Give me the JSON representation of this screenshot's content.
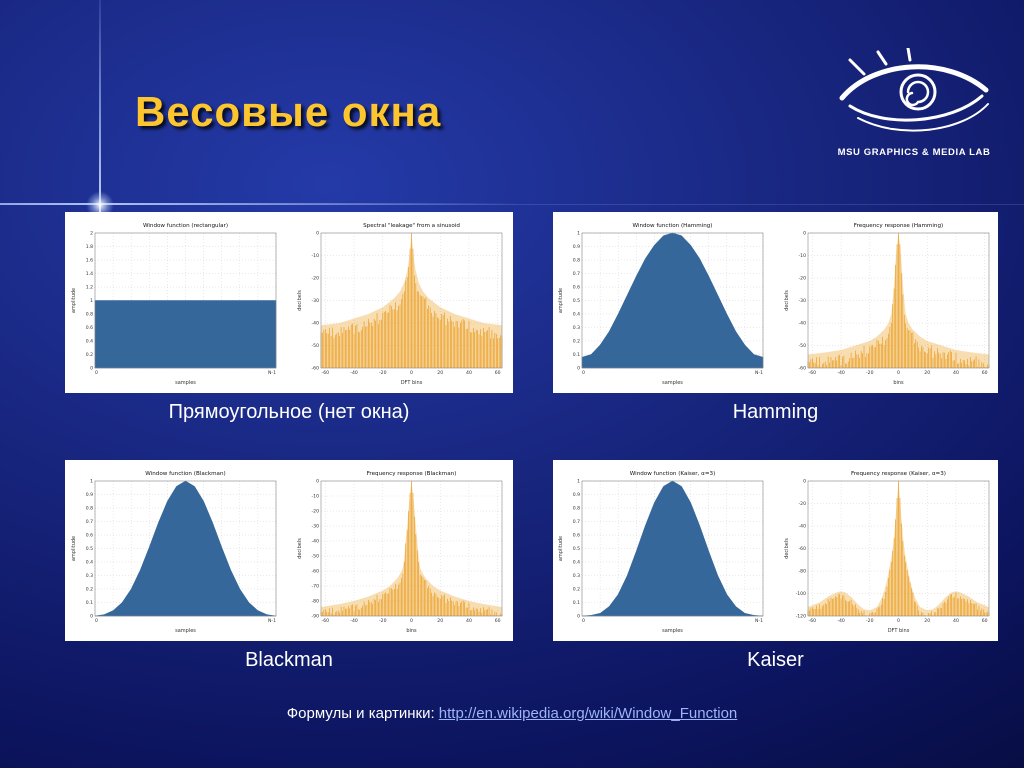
{
  "slide": {
    "title": "Весовые окна",
    "logo_text": "MSU GRAPHICS & MEDIA LAB",
    "footer_prefix": "Формулы и картинки: ",
    "footer_link": "http://en.wikipedia.org/wiki/Window_Function",
    "colors": {
      "background_blue": "#18267f",
      "title_gold": "#fdc62e",
      "window_fill": "#35679a",
      "response_fill": "#e8940c",
      "link_blue": "#9db4f6"
    }
  },
  "chart_data": [
    {
      "caption": "Прямоугольное (нет окна)",
      "plots": [
        {
          "type": "area",
          "title": "Window function (rectangular)",
          "xlabel": "samples",
          "ylabel": "amplitude",
          "xticklabels": [
            "0",
            "N-1"
          ],
          "ylim": [
            0,
            2
          ],
          "ytick_step": 0.2,
          "x": [
            0,
            1
          ],
          "y": [
            1,
            1
          ],
          "color": "#35679a"
        },
        {
          "type": "bars",
          "title": "Spectral \"leakage\" from a sinusoid",
          "xlabel": "DFT bins",
          "ylabel": "decibels",
          "xlim": [
            -63,
            63
          ],
          "xticks": [
            -60,
            -40,
            -20,
            0,
            20,
            40,
            60
          ],
          "ylim": [
            -60,
            0
          ],
          "ytick_step": 10,
          "envelope": [
            [
              -63,
              -41
            ],
            [
              -50,
              -40
            ],
            [
              -40,
              -38
            ],
            [
              -30,
              -36
            ],
            [
              -20,
              -33
            ],
            [
              -12,
              -29
            ],
            [
              -8,
              -26
            ],
            [
              -5,
              -22
            ],
            [
              -3,
              -17
            ],
            [
              -2,
              -13
            ],
            [
              -1,
              -7
            ],
            [
              0,
              0
            ],
            [
              1,
              -7
            ],
            [
              2,
              -13
            ],
            [
              3,
              -17
            ],
            [
              5,
              -22
            ],
            [
              8,
              -26
            ],
            [
              12,
              -29
            ],
            [
              20,
              -33
            ],
            [
              30,
              -36
            ],
            [
              40,
              -38
            ],
            [
              50,
              -40
            ],
            [
              63,
              -41
            ]
          ],
          "color": "#e8940c"
        }
      ]
    },
    {
      "caption": "Hamming",
      "plots": [
        {
          "type": "area",
          "title": "Window function (Hamming)",
          "xlabel": "samples",
          "ylabel": "amplitude",
          "xticklabels": [
            "0",
            "N-1"
          ],
          "ylim": [
            0,
            1
          ],
          "ytick_step": 0.1,
          "x": [
            0,
            0.05,
            0.1,
            0.15,
            0.2,
            0.25,
            0.3,
            0.35,
            0.4,
            0.45,
            0.5,
            0.55,
            0.6,
            0.65,
            0.7,
            0.75,
            0.8,
            0.85,
            0.9,
            0.95,
            1
          ],
          "y": [
            0.08,
            0.1,
            0.17,
            0.27,
            0.4,
            0.54,
            0.68,
            0.81,
            0.91,
            0.98,
            1.0,
            0.98,
            0.91,
            0.81,
            0.68,
            0.54,
            0.4,
            0.27,
            0.17,
            0.1,
            0.08
          ],
          "color": "#35679a"
        },
        {
          "type": "bars",
          "title": "Frequency response (Hamming)",
          "xlabel": "bins",
          "ylabel": "decibels",
          "xlim": [
            -63,
            63
          ],
          "xticks": [
            -60,
            -40,
            -20,
            0,
            20,
            40,
            60
          ],
          "ylim": [
            -60,
            0
          ],
          "ytick_step": 10,
          "envelope": [
            [
              -63,
              -54
            ],
            [
              -50,
              -53
            ],
            [
              -40,
              -52
            ],
            [
              -30,
              -50
            ],
            [
              -20,
              -48
            ],
            [
              -15,
              -46
            ],
            [
              -10,
              -43
            ],
            [
              -7,
              -40
            ],
            [
              -5,
              -36
            ],
            [
              -4,
              -30
            ],
            [
              -3,
              -22
            ],
            [
              -2,
              -12
            ],
            [
              -1,
              -5
            ],
            [
              0,
              0
            ],
            [
              1,
              -5
            ],
            [
              2,
              -12
            ],
            [
              3,
              -22
            ],
            [
              4,
              -30
            ],
            [
              5,
              -36
            ],
            [
              7,
              -40
            ],
            [
              10,
              -43
            ],
            [
              15,
              -46
            ],
            [
              20,
              -48
            ],
            [
              30,
              -50
            ],
            [
              40,
              -52
            ],
            [
              50,
              -53
            ],
            [
              63,
              -54
            ]
          ],
          "color": "#e8940c"
        }
      ]
    },
    {
      "caption": "Blackman",
      "plots": [
        {
          "type": "area",
          "title": "Window function (Blackman)",
          "xlabel": "samples",
          "ylabel": "amplitude",
          "xticklabels": [
            "0",
            "N-1"
          ],
          "ylim": [
            0,
            1
          ],
          "ytick_step": 0.1,
          "x": [
            0,
            0.05,
            0.1,
            0.15,
            0.2,
            0.25,
            0.3,
            0.35,
            0.4,
            0.45,
            0.5,
            0.55,
            0.6,
            0.65,
            0.7,
            0.75,
            0.8,
            0.85,
            0.9,
            0.95,
            1
          ],
          "y": [
            0,
            0.01,
            0.04,
            0.1,
            0.2,
            0.34,
            0.51,
            0.69,
            0.85,
            0.96,
            1.0,
            0.96,
            0.85,
            0.69,
            0.51,
            0.34,
            0.2,
            0.1,
            0.04,
            0.01,
            0
          ],
          "color": "#35679a"
        },
        {
          "type": "bars",
          "title": "Frequency response (Blackman)",
          "xlabel": "bins",
          "ylabel": "decibels",
          "xlim": [
            -63,
            63
          ],
          "xticks": [
            -60,
            -40,
            -20,
            0,
            20,
            40,
            60
          ],
          "ylim": [
            -90,
            0
          ],
          "ytick_step": 10,
          "envelope": [
            [
              -63,
              -84
            ],
            [
              -50,
              -82
            ],
            [
              -40,
              -80
            ],
            [
              -30,
              -77
            ],
            [
              -20,
              -73
            ],
            [
              -15,
              -70
            ],
            [
              -10,
              -65
            ],
            [
              -8,
              -62
            ],
            [
              -6,
              -58
            ],
            [
              -5,
              -50
            ],
            [
              -4,
              -40
            ],
            [
              -3,
              -30
            ],
            [
              -2,
              -18
            ],
            [
              -1,
              -8
            ],
            [
              0,
              0
            ],
            [
              1,
              -8
            ],
            [
              2,
              -18
            ],
            [
              3,
              -30
            ],
            [
              4,
              -40
            ],
            [
              5,
              -50
            ],
            [
              6,
              -58
            ],
            [
              8,
              -62
            ],
            [
              10,
              -65
            ],
            [
              15,
              -70
            ],
            [
              20,
              -73
            ],
            [
              30,
              -77
            ],
            [
              40,
              -80
            ],
            [
              50,
              -82
            ],
            [
              63,
              -84
            ]
          ],
          "color": "#e8940c"
        }
      ]
    },
    {
      "caption": "Kaiser",
      "plots": [
        {
          "type": "area",
          "title": "Window function (Kaiser, α=3)",
          "xlabel": "samples",
          "ylabel": "amplitude",
          "xticklabels": [
            "0",
            "N-1"
          ],
          "ylim": [
            0,
            1
          ],
          "ytick_step": 0.1,
          "x": [
            0,
            0.05,
            0.1,
            0.15,
            0.2,
            0.25,
            0.3,
            0.35,
            0.4,
            0.45,
            0.5,
            0.55,
            0.6,
            0.65,
            0.7,
            0.75,
            0.8,
            0.85,
            0.9,
            0.95,
            1
          ],
          "y": [
            0,
            0.005,
            0.02,
            0.07,
            0.16,
            0.3,
            0.48,
            0.67,
            0.84,
            0.96,
            1.0,
            0.96,
            0.84,
            0.67,
            0.48,
            0.3,
            0.16,
            0.07,
            0.02,
            0.005,
            0
          ],
          "color": "#35679a"
        },
        {
          "type": "bars",
          "title": "Frequency response (Kaiser, α=3)",
          "xlabel": "DFT bins",
          "ylabel": "decibels",
          "xlim": [
            -63,
            63
          ],
          "xticks": [
            -60,
            -40,
            -20,
            0,
            20,
            40,
            60
          ],
          "ylim": [
            -120,
            0
          ],
          "ytick_step": 20,
          "envelope": [
            [
              -63,
              -112
            ],
            [
              -55,
              -108
            ],
            [
              -48,
              -102
            ],
            [
              -43,
              -99
            ],
            [
              -40,
              -98
            ],
            [
              -37,
              -99
            ],
            [
              -33,
              -103
            ],
            [
              -28,
              -110
            ],
            [
              -24,
              -114
            ],
            [
              -20,
              -115
            ],
            [
              -15,
              -112
            ],
            [
              -12,
              -105
            ],
            [
              -10,
              -98
            ],
            [
              -8,
              -88
            ],
            [
              -6,
              -75
            ],
            [
              -5,
              -68
            ],
            [
              -4,
              -60
            ],
            [
              -3,
              -48
            ],
            [
              -2,
              -32
            ],
            [
              -1,
              -15
            ],
            [
              0,
              0
            ],
            [
              1,
              -15
            ],
            [
              2,
              -32
            ],
            [
              3,
              -48
            ],
            [
              4,
              -60
            ],
            [
              5,
              -68
            ],
            [
              6,
              -75
            ],
            [
              8,
              -88
            ],
            [
              10,
              -98
            ],
            [
              12,
              -105
            ],
            [
              15,
              -112
            ],
            [
              20,
              -115
            ],
            [
              24,
              -114
            ],
            [
              28,
              -110
            ],
            [
              33,
              -103
            ],
            [
              37,
              -99
            ],
            [
              40,
              -98
            ],
            [
              43,
              -99
            ],
            [
              48,
              -102
            ],
            [
              55,
              -108
            ],
            [
              63,
              -112
            ]
          ],
          "color": "#e8940c"
        }
      ]
    }
  ]
}
